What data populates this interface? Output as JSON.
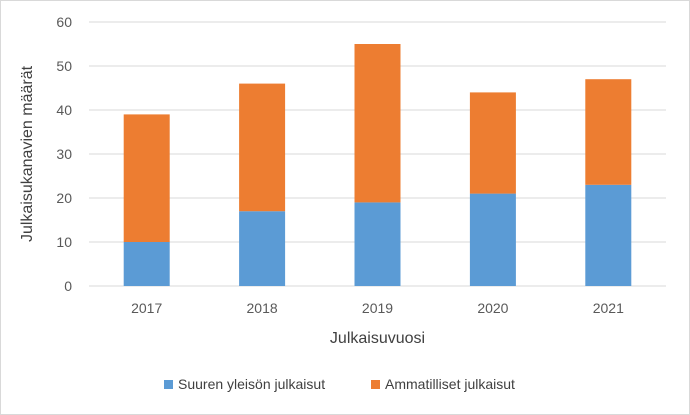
{
  "chart_data": {
    "type": "bar",
    "stacked": true,
    "categories": [
      "2017",
      "2018",
      "2019",
      "2020",
      "2021"
    ],
    "series": [
      {
        "name": "Suuren yleisön julkaisut",
        "values": [
          10,
          17,
          19,
          21,
          23
        ],
        "color": "#5b9bd5"
      },
      {
        "name": "Ammatilliset julkaisut",
        "values": [
          29,
          29,
          36,
          23,
          24
        ],
        "color": "#ed7d31"
      }
    ],
    "xlabel": "Julkaisuvuosi",
    "ylabel": "Julkaisukanavien määrät",
    "ylim": [
      0,
      60
    ],
    "yticks": [
      0,
      10,
      20,
      30,
      40,
      50,
      60
    ],
    "grid": true,
    "legend_position": "bottom"
  }
}
